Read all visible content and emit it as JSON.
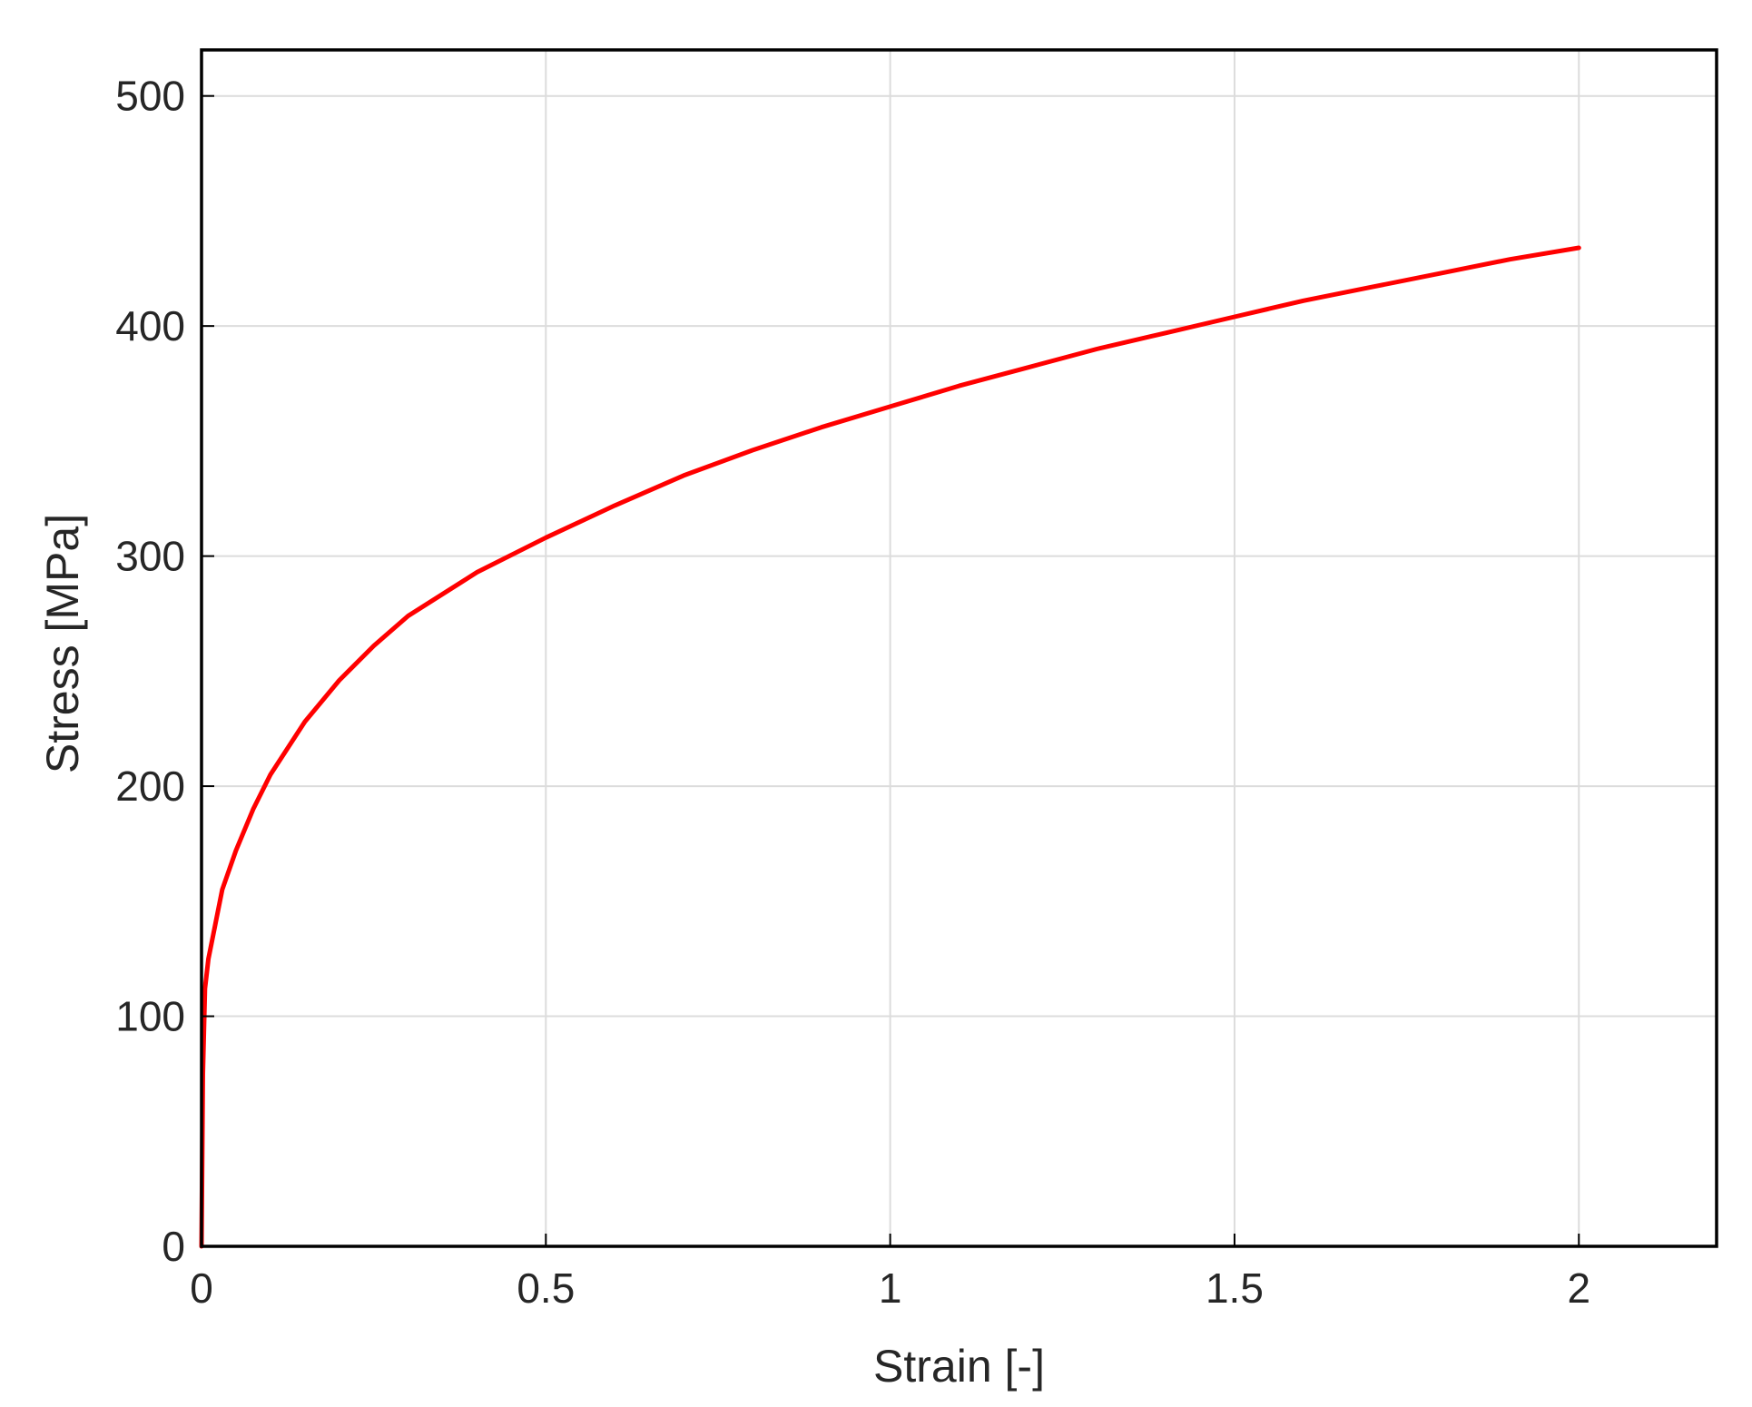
{
  "chart_data": {
    "type": "line",
    "title": "",
    "xlabel": "Strain [-]",
    "ylabel": "Stress [MPa]",
    "xlim": [
      0,
      2.2
    ],
    "ylim": [
      0,
      520
    ],
    "xticks": [
      0,
      0.5,
      1,
      1.5,
      2
    ],
    "xtick_labels": [
      "0",
      "0.5",
      "1",
      "1.5",
      "2"
    ],
    "yticks": [
      0,
      100,
      200,
      300,
      400,
      500
    ],
    "ytick_labels": [
      "0",
      "100",
      "200",
      "300",
      "400",
      "500"
    ],
    "grid": true,
    "series": [
      {
        "color": "#ff0000",
        "x": [
          0,
          0.002,
          0.005,
          0.01,
          0.02,
          0.03,
          0.05,
          0.075,
          0.1,
          0.15,
          0.2,
          0.25,
          0.3,
          0.4,
          0.5,
          0.6,
          0.7,
          0.8,
          0.9,
          1.0,
          1.1,
          1.2,
          1.3,
          1.4,
          1.5,
          1.6,
          1.7,
          1.8,
          1.9,
          2.0
        ],
        "y": [
          0,
          75,
          112,
          125,
          140,
          155,
          172,
          190,
          205,
          228,
          246,
          261,
          274,
          293,
          308,
          322,
          335,
          346,
          356,
          365,
          374,
          382,
          390,
          397,
          404,
          411,
          417,
          423,
          429,
          434
        ]
      }
    ]
  }
}
